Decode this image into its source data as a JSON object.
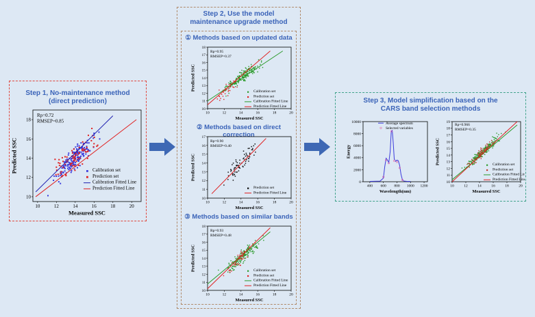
{
  "colors": {
    "step1_border": "#e0463c",
    "step2_border": "#b08a6a",
    "step3_border": "#3fa28a",
    "title": "#3a63b8",
    "arrow": "#3e68b4",
    "calibration_blue": "#3b3bdc",
    "prediction_red": "#e02020",
    "calibration_green": "#2a9a2a",
    "black_points": "#111111"
  },
  "step1": {
    "title_line1": "Step 1, No-maintenance method",
    "title_line2": "(direct prediction)"
  },
  "step2": {
    "title_line1": "Step 2, Use the model",
    "title_line2": "maintenance upgrade method",
    "method1": "① Methods based on updated data",
    "method2": "② Methods based on direct correction",
    "method3": "③ Methods based on similar bands"
  },
  "step3": {
    "title_line1": "Step 3, Model simplification based on the",
    "title_line2": "CARS band selection methods"
  },
  "chart_data": [
    {
      "id": "step1-scatter",
      "type": "scatter",
      "xlabel": "Measured SSC",
      "ylabel": "Predicted SSC",
      "xlim": [
        9.5,
        21
      ],
      "ylim": [
        9.5,
        19
      ],
      "xticks": [
        10,
        12,
        14,
        16,
        18,
        20
      ],
      "yticks": [
        10,
        12,
        14,
        16,
        18
      ],
      "stats": [
        "Rp=0.72",
        "RMSEP=0.85"
      ],
      "legend": [
        "Calibration set",
        "Prediction set",
        "Calibration Fitted Line",
        "Prediction Fitted Line"
      ],
      "fit_lines": [
        {
          "name": "Calibration Fitted Line",
          "x": [
            9.8,
            18
          ],
          "y": [
            10.5,
            18.4
          ],
          "color": "#2020b0"
        },
        {
          "name": "Prediction Fitted Line",
          "x": [
            9.8,
            20.5
          ],
          "y": [
            10.0,
            18.0
          ],
          "color": "#e02020"
        }
      ],
      "series": [
        {
          "name": "Calibration set",
          "color": "#3b3bdc",
          "count": 170,
          "cx": 14.0,
          "sx": 1.4,
          "slope": 0.95,
          "noise": 0.75,
          "seed": 11
        },
        {
          "name": "Prediction set",
          "color": "#e02020",
          "count": 80,
          "cx": 14.0,
          "sx": 1.6,
          "slope": 0.7,
          "noise": 0.85,
          "seed": 27
        }
      ]
    },
    {
      "id": "step2-updated",
      "type": "scatter",
      "xlabel": "Measured SSC",
      "ylabel": "Predicted SSC",
      "xlim": [
        10,
        20
      ],
      "ylim": [
        10,
        18
      ],
      "xticks": [
        10,
        12,
        14,
        16,
        18,
        20
      ],
      "yticks": [
        10,
        11,
        12,
        13,
        14,
        15,
        16,
        17,
        18
      ],
      "stats": [
        "Rp=0.95",
        "RMSEP=0.37"
      ],
      "legend": [
        "Calibration set",
        "Prediction set",
        "Calibration Fitted Line",
        "Prediction Fitted Line"
      ],
      "fit_lines": [
        {
          "name": "Calibration Fitted Line",
          "x": [
            10,
            19
          ],
          "y": [
            11.0,
            17.5
          ],
          "color": "#2a9a2a"
        },
        {
          "name": "Prediction Fitted Line",
          "x": [
            10,
            17.5
          ],
          "y": [
            10.5,
            17.5
          ],
          "color": "#e02020"
        }
      ],
      "series": [
        {
          "name": "Calibration set",
          "color": "#2a9a2a",
          "count": 200,
          "cx": 14.2,
          "sx": 1.5,
          "slope": 0.8,
          "noise": 0.5,
          "seed": 5
        },
        {
          "name": "Prediction set",
          "color": "#e02020",
          "count": 35,
          "cx": 12.5,
          "sx": 1.0,
          "slope": 0.9,
          "noise": 0.6,
          "seed": 44
        }
      ]
    },
    {
      "id": "step2-direct",
      "type": "scatter",
      "xlabel": "Measured SSC",
      "ylabel": "Predicted SSC",
      "xlim": [
        10,
        20
      ],
      "ylim": [
        10,
        17
      ],
      "xticks": [
        10,
        12,
        14,
        16,
        18,
        20
      ],
      "yticks": [
        10,
        11,
        12,
        13,
        14,
        15,
        16,
        17
      ],
      "stats": [
        "Rp=0.90",
        "RMSEP=0.40"
      ],
      "legend": [
        "Prediction set",
        "Prediction Fitted Line"
      ],
      "fit_lines": [
        {
          "name": "Prediction Fitted Line",
          "x": [
            10.5,
            17
          ],
          "y": [
            10.5,
            16.8
          ],
          "color": "#e02020"
        }
      ],
      "series": [
        {
          "name": "Prediction set",
          "color": "#111111",
          "count": 70,
          "cx": 13.8,
          "sx": 1.3,
          "slope": 0.9,
          "noise": 0.7,
          "seed": 73
        }
      ]
    },
    {
      "id": "step2-similar",
      "type": "scatter",
      "xlabel": "Measured SSC",
      "ylabel": "Predicted SSC",
      "xlim": [
        10,
        20
      ],
      "ylim": [
        10,
        18
      ],
      "xticks": [
        10,
        12,
        14,
        16,
        18,
        20
      ],
      "yticks": [
        10,
        11,
        12,
        13,
        14,
        15,
        16,
        17,
        18
      ],
      "stats": [
        "Rp=0.93",
        "RMSEP=0.48"
      ],
      "legend": [
        "Calibration set",
        "Prediction set",
        "Calibration Fitted Line",
        "Prediction Fitted Line"
      ],
      "fit_lines": [
        {
          "name": "Calibration Fitted Line",
          "x": [
            10,
            17.5
          ],
          "y": [
            10.8,
            17.3
          ],
          "color": "#2a9a2a"
        },
        {
          "name": "Prediction Fitted Line",
          "x": [
            10,
            17.5
          ],
          "y": [
            10.2,
            17.8
          ],
          "color": "#e02020"
        }
      ],
      "series": [
        {
          "name": "Calibration set",
          "color": "#2a9a2a",
          "count": 170,
          "cx": 14.2,
          "sx": 1.4,
          "slope": 0.85,
          "noise": 0.55,
          "seed": 91
        },
        {
          "name": "Prediction set",
          "color": "#e02020",
          "count": 40,
          "cx": 14.0,
          "sx": 1.2,
          "slope": 0.9,
          "noise": 0.6,
          "seed": 13
        }
      ]
    },
    {
      "id": "step3-spectrum",
      "type": "line",
      "xlabel": "Wavelength(nm)",
      "ylabel": "Energy",
      "xlim": [
        300,
        1250
      ],
      "ylim": [
        0,
        10000
      ],
      "xticks": [
        400,
        600,
        800,
        1000,
        1200
      ],
      "yticks": [
        0,
        2000,
        4000,
        6000,
        8000,
        10000
      ],
      "legend": [
        "Average spectrum",
        "Selected variables"
      ],
      "series": [
        {
          "name": "Average spectrum",
          "color": "#3b3bdc",
          "x": [
            400,
            550,
            600,
            620,
            640,
            660,
            680,
            700,
            715,
            730,
            745,
            760,
            780,
            800,
            820,
            840,
            860,
            880,
            900,
            950,
            1000
          ],
          "y": [
            50,
            100,
            600,
            2500,
            3900,
            3600,
            3200,
            5000,
            8200,
            8600,
            6500,
            3800,
            3400,
            3600,
            3500,
            2700,
            1200,
            350,
            120,
            60,
            50
          ]
        },
        {
          "name": "Selected variables",
          "color": "#e36aa8",
          "x": [
            600,
            640,
            680,
            720,
            760,
            800,
            840,
            880
          ],
          "y": [
            800,
            3600,
            3100,
            8400,
            3500,
            3300,
            2300,
            300
          ]
        }
      ]
    },
    {
      "id": "step3-scatter",
      "type": "scatter",
      "xlabel": "Measured SSC",
      "ylabel": "Predicted SSC",
      "xlim": [
        10,
        20
      ],
      "ylim": [
        10,
        19
      ],
      "xticks": [
        10,
        12,
        14,
        16,
        18,
        20
      ],
      "yticks": [
        10,
        11,
        12,
        13,
        14,
        15,
        16,
        17,
        18,
        19
      ],
      "stats": [
        "Rp=0.966",
        "RMSEP=0.35"
      ],
      "legend": [
        "Calibration set",
        "Prediction set",
        "Calibration Fitted Line",
        "Prediction Fitted Line"
      ],
      "fit_lines": [
        {
          "name": "Calibration Fitted Line",
          "x": [
            10,
            19.5
          ],
          "y": [
            10.3,
            18.5
          ],
          "color": "#2a9a2a"
        },
        {
          "name": "Prediction Fitted Line",
          "x": [
            10,
            19.5
          ],
          "y": [
            10.0,
            19.0
          ],
          "color": "#e02020"
        }
      ],
      "series": [
        {
          "name": "Calibration set",
          "color": "#2a9a2a",
          "count": 200,
          "cx": 14.5,
          "sx": 1.6,
          "slope": 0.95,
          "noise": 0.45,
          "seed": 31
        },
        {
          "name": "Prediction set",
          "color": "#c0392b",
          "count": 70,
          "cx": 14.2,
          "sx": 1.3,
          "slope": 0.95,
          "noise": 0.45,
          "seed": 57
        }
      ]
    }
  ]
}
